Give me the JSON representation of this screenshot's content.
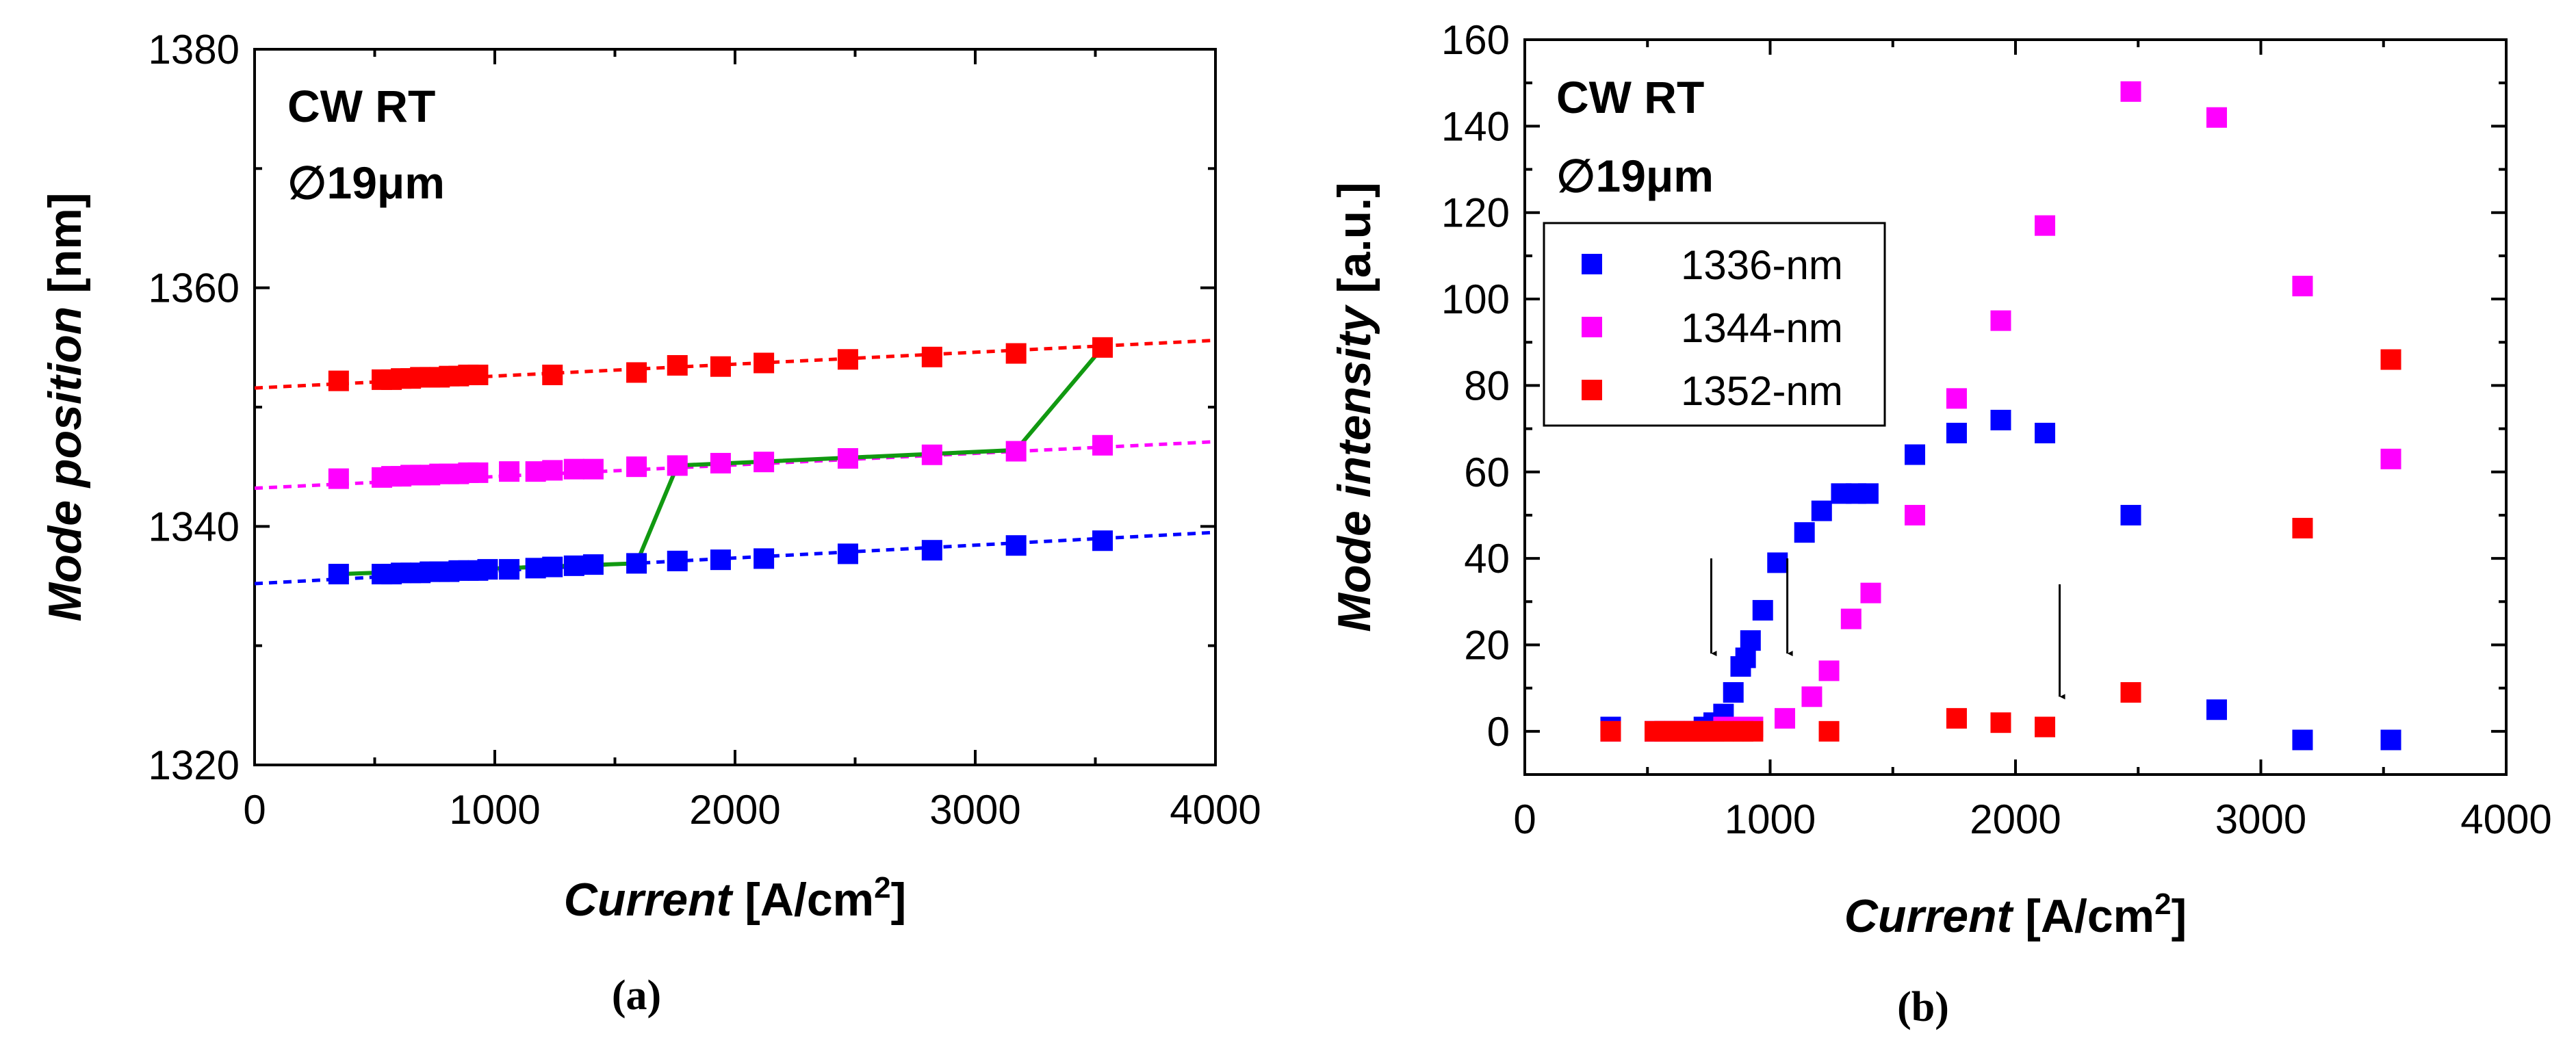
{
  "chart_data": [
    {
      "type": "scatter",
      "panel_label": "(a)",
      "annotation": [
        "CW RT",
        "∅19μm"
      ],
      "xlabel": {
        "italic": "Current",
        "rest": " [A/cm",
        "sup": "2",
        "close": "]"
      },
      "ylabel": {
        "italic": "Mode position",
        "rest": " [nm]"
      },
      "xlim": [
        0,
        4000
      ],
      "ylim": [
        1320,
        1380
      ],
      "xticks": [
        0,
        1000,
        2000,
        3000,
        4000
      ],
      "yticks": [
        1320,
        1340,
        1360,
        1380
      ],
      "grid": false,
      "series": [
        {
          "color": "#ff0000",
          "x": [
            350,
            530,
            570,
            610,
            650,
            690,
            730,
            770,
            810,
            850,
            890,
            930,
            1240,
            1590,
            1760,
            1940,
            2120,
            2470,
            2820,
            3170,
            3530
          ],
          "y": [
            1352.2,
            1352.3,
            1352.3,
            1352.4,
            1352.4,
            1352.5,
            1352.5,
            1352.5,
            1352.6,
            1352.6,
            1352.7,
            1352.7,
            1352.7,
            1352.9,
            1353.5,
            1353.4,
            1353.7,
            1354.0,
            1354.2,
            1354.5,
            1355.0
          ]
        },
        {
          "color": "#ff00ff",
          "x": [
            350,
            530,
            570,
            610,
            650,
            690,
            730,
            770,
            810,
            850,
            890,
            930,
            1060,
            1170,
            1240,
            1330,
            1410,
            1590,
            1760,
            1940,
            2120,
            2470,
            2820,
            3170,
            3530
          ],
          "y": [
            1344.0,
            1344.1,
            1344.2,
            1344.2,
            1344.3,
            1344.3,
            1344.3,
            1344.4,
            1344.4,
            1344.4,
            1344.5,
            1344.5,
            1344.6,
            1344.6,
            1344.7,
            1344.8,
            1344.8,
            1345.0,
            1345.1,
            1345.3,
            1345.4,
            1345.7,
            1346.0,
            1346.3,
            1346.8
          ]
        },
        {
          "color": "#0000ff",
          "x": [
            350,
            530,
            570,
            610,
            650,
            690,
            730,
            770,
            810,
            850,
            890,
            930,
            970,
            1060,
            1170,
            1240,
            1330,
            1410,
            1590,
            1760,
            1940,
            2120,
            2470,
            2820,
            3170,
            3530
          ],
          "y": [
            1336.0,
            1336.0,
            1336.0,
            1336.1,
            1336.1,
            1336.1,
            1336.2,
            1336.2,
            1336.2,
            1336.3,
            1336.3,
            1336.3,
            1336.4,
            1336.4,
            1336.5,
            1336.6,
            1336.7,
            1336.8,
            1336.9,
            1337.1,
            1337.2,
            1337.3,
            1337.7,
            1338.0,
            1338.4,
            1338.8
          ]
        }
      ],
      "fits": [
        {
          "color": "#ff0000",
          "x": [
            0,
            4000
          ],
          "y": [
            1351.6,
            1355.6
          ]
        },
        {
          "color": "#ff00ff",
          "x": [
            0,
            4000
          ],
          "y": [
            1343.2,
            1347.1
          ]
        },
        {
          "color": "#0000ff",
          "x": [
            0,
            4000
          ],
          "y": [
            1335.2,
            1339.5
          ]
        }
      ],
      "green_path": {
        "color": "#119911",
        "x": [
          350,
          1590,
          1760,
          3170,
          3530
        ],
        "y": [
          1336.0,
          1336.9,
          1345.1,
          1346.4,
          1355.0
        ]
      }
    },
    {
      "type": "scatter",
      "panel_label": "(b)",
      "annotation": [
        "CW RT",
        "∅19μm"
      ],
      "xlabel": {
        "italic": "Current",
        "rest": " [A/cm",
        "sup": "2",
        "close": "]"
      },
      "ylabel": {
        "italic": "Mode intensity",
        "rest": " [a.u.]"
      },
      "xlim": [
        0,
        4000
      ],
      "ylim": [
        -10,
        160
      ],
      "xticks": [
        0,
        1000,
        2000,
        3000,
        4000
      ],
      "yticks": [
        0,
        20,
        40,
        60,
        80,
        100,
        120,
        140,
        160
      ],
      "grid": false,
      "legend_position": "upper-left",
      "series": [
        {
          "name": "1336-nm",
          "color": "#0000ff",
          "x": [
            350,
            530,
            570,
            610,
            650,
            690,
            730,
            770,
            810,
            850,
            880,
            900,
            920,
            970,
            1030,
            1140,
            1210,
            1290,
            1350,
            1400,
            1590,
            1760,
            1940,
            2120,
            2470,
            2820,
            3170,
            3530
          ],
          "y": [
            1,
            0,
            0,
            0,
            0,
            0,
            1,
            2,
            4,
            9,
            15,
            17,
            21,
            28,
            39,
            46,
            51,
            55,
            55,
            55,
            64,
            69,
            72,
            69,
            50,
            5,
            -2,
            -2
          ]
        },
        {
          "name": "1344-nm",
          "color": "#ff00ff",
          "x": [
            350,
            530,
            570,
            610,
            650,
            690,
            730,
            770,
            810,
            850,
            890,
            930,
            1060,
            1170,
            1240,
            1330,
            1410,
            1590,
            1760,
            1940,
            2120,
            2470,
            2820,
            3170,
            3530
          ],
          "y": [
            0,
            0,
            0,
            0,
            0,
            0,
            0,
            0,
            1,
            1,
            1,
            1,
            3,
            8,
            14,
            26,
            32,
            50,
            77,
            95,
            117,
            148,
            142,
            103,
            63
          ]
        },
        {
          "name": "1352-nm",
          "color": "#ff0000",
          "x": [
            350,
            530,
            570,
            610,
            650,
            690,
            730,
            770,
            810,
            850,
            890,
            930,
            1240,
            1760,
            1940,
            2120,
            2470,
            3170,
            3530
          ],
          "y": [
            0,
            0,
            0,
            0,
            0,
            0,
            0,
            0,
            0,
            0,
            0,
            0,
            0,
            3,
            2,
            1,
            9,
            47,
            86
          ]
        }
      ],
      "arrows_at_x": [
        760,
        1070,
        2180
      ]
    }
  ]
}
